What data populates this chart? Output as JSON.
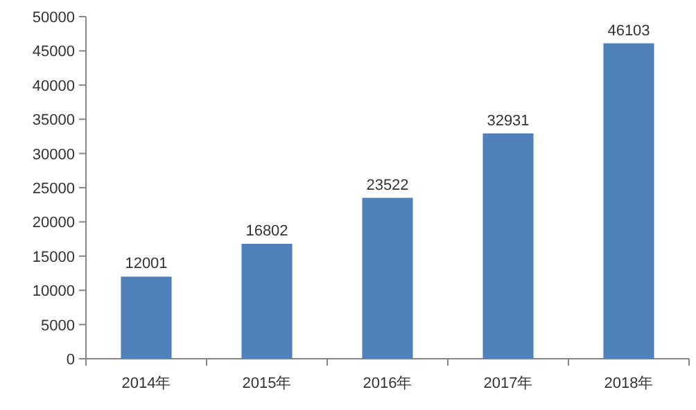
{
  "chart_data": {
    "type": "bar",
    "categories": [
      "2014年",
      "2015年",
      "2016年",
      "2017年",
      "2018年"
    ],
    "values": [
      12001,
      16802,
      23522,
      32931,
      46103
    ],
    "color": "#4f81bd",
    "ylim": [
      0,
      50000
    ],
    "yticks": [
      0,
      5000,
      10000,
      15000,
      20000,
      25000,
      30000,
      35000,
      40000,
      45000,
      50000
    ],
    "data_labels": true,
    "grid": false
  }
}
